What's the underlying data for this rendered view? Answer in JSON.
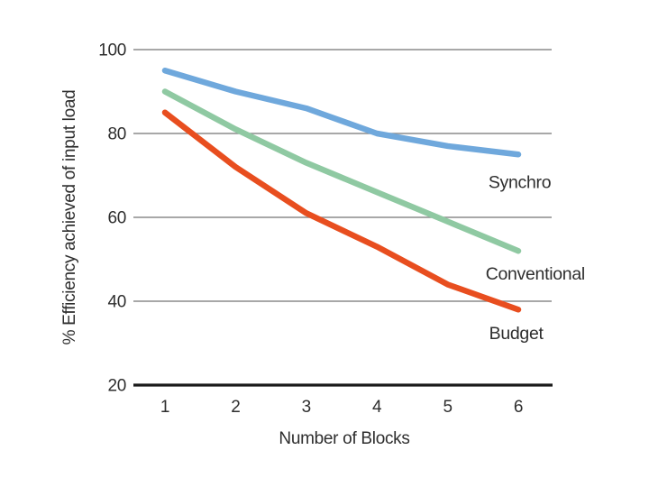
{
  "figure": {
    "background": "#ffffff"
  },
  "chart_data": {
    "type": "line",
    "title": "",
    "xlabel": "Number of Blocks",
    "ylabel": "% Efficiency achieved of input load",
    "x": [
      1,
      2,
      3,
      4,
      5,
      6
    ],
    "xticks": [
      "1",
      "2",
      "3",
      "4",
      "5",
      "6"
    ],
    "yticks": [
      20,
      40,
      60,
      80,
      100
    ],
    "ylim": [
      20,
      100
    ],
    "xlim": [
      0.55,
      6.47
    ],
    "grid": "horizontal-only",
    "legend": "inline-labels-near-line-ends",
    "series": [
      {
        "name": "Synchro",
        "color": "#6fa8dc",
        "values": [
          95,
          90,
          86,
          80,
          77,
          75
        ],
        "label_anchor": {
          "x": 6.02,
          "y": 68.5
        }
      },
      {
        "name": "Conventional",
        "color": "#8fc9a2",
        "values": [
          90,
          81,
          73,
          66,
          59,
          52
        ],
        "label_anchor": {
          "x": 6.24,
          "y": 46.7
        }
      },
      {
        "name": "Budget",
        "color": "#e84e1f",
        "values": [
          85,
          72,
          61,
          53,
          44,
          38
        ],
        "label_anchor": {
          "x": 5.97,
          "y": 32.5
        }
      }
    ],
    "style": {
      "gridline_color": "#8c8c8c",
      "axis_color": "#1a1a1a",
      "text_color": "#2e2e2e",
      "line_width": 6.5
    }
  }
}
